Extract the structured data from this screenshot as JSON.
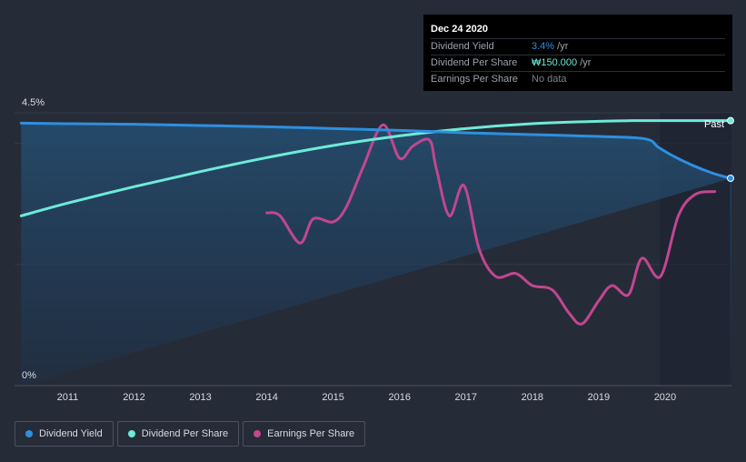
{
  "tooltip": {
    "date": "Dec 24 2020",
    "rows": [
      {
        "label": "Dividend Yield",
        "value": "3.4%",
        "unit": " /yr",
        "color": "#2e8fe0"
      },
      {
        "label": "Dividend Per Share",
        "value": "₩150.000",
        "unit": " /yr",
        "color": "#6eead8"
      },
      {
        "label": "Earnings Per Share",
        "value": "No data",
        "unit": "",
        "color": "#7b808b"
      }
    ]
  },
  "legend": [
    {
      "label": "Dividend Yield",
      "color": "#2e8fe0"
    },
    {
      "label": "Dividend Per Share",
      "color": "#6eead8"
    },
    {
      "label": "Earnings Per Share",
      "color": "#c0478f"
    }
  ],
  "colors": {
    "background": "#262b38",
    "dividend_yield": "#2e8fe0",
    "dividend_per_share": "#6eead8",
    "earnings_per_share": "#c0478f",
    "area_fill": "#1f4260",
    "axis": "#6a7080"
  },
  "chart_data": {
    "type": "line",
    "title": "",
    "xlabel": "",
    "ylabel": "",
    "ylim": [
      0,
      4.5
    ],
    "xlim": [
      2010.2,
      2021.0
    ],
    "y_tick_labels": [
      "4.5%",
      "0%"
    ],
    "x_tick_labels": [
      "2011",
      "2012",
      "2013",
      "2014",
      "2015",
      "2016",
      "2017",
      "2018",
      "2019",
      "2020"
    ],
    "x_ticks": [
      2011,
      2012,
      2013,
      2014,
      2015,
      2016,
      2017,
      2018,
      2019,
      2020
    ],
    "past_label": "Past",
    "past_start": 2019.92,
    "series": [
      {
        "name": "Dividend Yield",
        "unit": "%",
        "x": [
          2010.3,
          2011,
          2012,
          2013,
          2014,
          2015,
          2016,
          2017,
          2018,
          2019,
          2019.7,
          2019.9,
          2020.1,
          2020.4,
          2020.7,
          2020.98
        ],
        "y": [
          4.33,
          4.32,
          4.31,
          4.29,
          4.27,
          4.24,
          4.21,
          4.17,
          4.14,
          4.11,
          4.07,
          3.93,
          3.8,
          3.64,
          3.51,
          3.42
        ]
      },
      {
        "name": "Dividend Per Share",
        "unit": "KRW",
        "x": [
          2010.3,
          2011,
          2012,
          2013,
          2014,
          2015,
          2016,
          2017,
          2018,
          2019,
          2019.5,
          2020,
          2020.98
        ],
        "y": [
          2.8,
          3.01,
          3.28,
          3.53,
          3.76,
          3.96,
          4.12,
          4.24,
          4.32,
          4.36,
          4.37,
          4.37,
          4.37
        ]
      },
      {
        "name": "Earnings Per Share",
        "unit": "KRW",
        "x": [
          2014.0,
          2014.2,
          2014.5,
          2014.7,
          2015.0,
          2015.2,
          2015.45,
          2015.75,
          2016.0,
          2016.2,
          2016.45,
          2016.55,
          2016.75,
          2016.97,
          2017.2,
          2017.45,
          2017.75,
          2018.0,
          2018.3,
          2018.55,
          2018.75,
          2019.0,
          2019.2,
          2019.45,
          2019.65,
          2019.93,
          2020.2,
          2020.45,
          2020.75
        ],
        "y": [
          2.85,
          2.8,
          2.35,
          2.75,
          2.7,
          2.95,
          3.6,
          4.3,
          3.75,
          3.95,
          4.05,
          3.6,
          2.8,
          3.3,
          2.25,
          1.8,
          1.85,
          1.65,
          1.58,
          1.2,
          1.02,
          1.4,
          1.65,
          1.5,
          2.1,
          1.8,
          2.8,
          3.15,
          3.2
        ]
      }
    ]
  }
}
